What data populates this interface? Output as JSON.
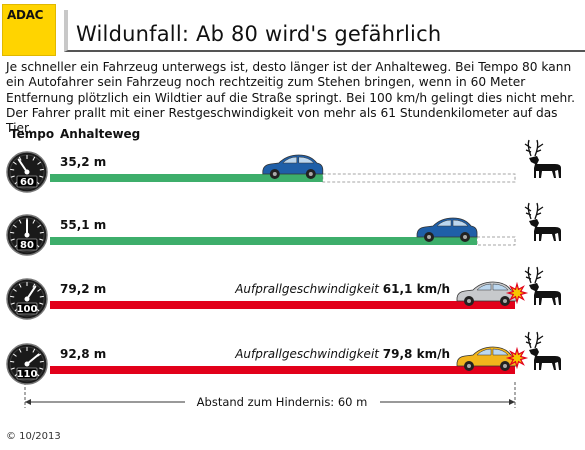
{
  "brand": "ADAC",
  "title": "Wildunfall: Ab 80 wird's gefährlich",
  "intro": "Je schneller ein Fahrzeug unterwegs ist, desto länger ist der Anhalteweg. Bei Tempo 80 kann ein Autofahrer sein Fahrzeug noch rechtzeitig zum Stehen bringen, wenn in 60 Meter Entfernung plötzlich ein Wildtier auf die Straße springt. Bei 100 km/h gelingt dies nicht mehr. Der Fahrer prallt mit einer Restgeschwindigkeit von mehr als 61 Stundenkilometer auf das Tier.",
  "footer": "© 10/2013",
  "colors": {
    "safe": "#3dae6b",
    "danger": "#e2001a",
    "car_blue": "#1f5fa8",
    "car_silver": "#c7c9cc",
    "car_yellow": "#f2b51c"
  },
  "chart_data": {
    "type": "bar",
    "orientation": "horizontal",
    "column_headers": [
      "Tempo",
      "Anhalteweg"
    ],
    "categories": [
      "60",
      "80",
      "100",
      "110"
    ],
    "values": [
      35.2,
      55.1,
      79.2,
      92.8
    ],
    "value_labels": [
      "35,2 m",
      "55,1 m",
      "79,2 m",
      "92,8 m"
    ],
    "unit": "m",
    "obstacle_distance": 60,
    "obstacle_label": "Abstand zum Hindernis: 60 m",
    "collision": [
      false,
      false,
      true,
      true
    ],
    "impact_label_prefix": "Aufprallgeschwindigkeit",
    "impact_values": [
      "",
      "",
      "61,1 km/h",
      "79,8 km/h"
    ],
    "car_colors": [
      "car_blue",
      "car_blue",
      "car_silver",
      "car_yellow"
    ],
    "icons": [
      "speedometer-icon",
      "car-icon",
      "deer-icon",
      "impact-burst-icon"
    ]
  }
}
